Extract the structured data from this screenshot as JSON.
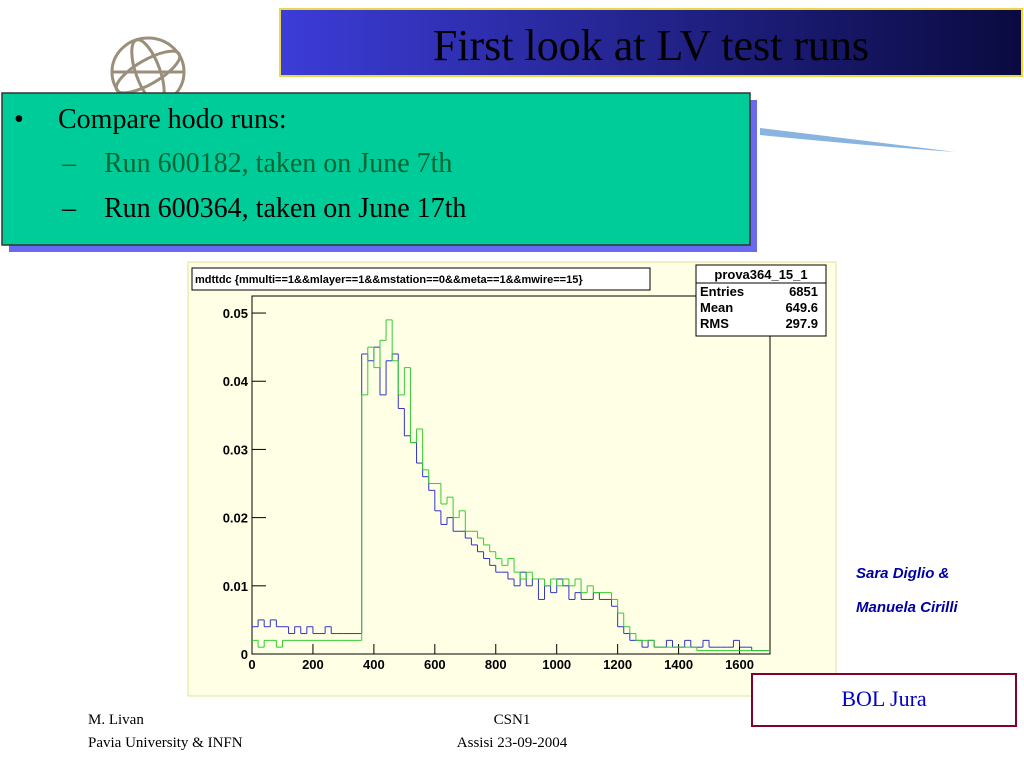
{
  "slide": {
    "title": "First look at LV test runs",
    "bullets": [
      {
        "marker": "•",
        "text": "Compare hodo runs:"
      },
      {
        "marker": "–",
        "text": "Run 600182, taken on June 7th"
      },
      {
        "marker": "–",
        "text": "Run 600364, taken on June 17th"
      }
    ],
    "authors": [
      "Sara Diglio &",
      "Manuela Cirilli"
    ],
    "box_label": "BOL Jura",
    "footer_left": [
      "M. Livan",
      "Pavia University & INFN"
    ],
    "footer_center": [
      "CSN1",
      "Assisi 23-09-2004"
    ]
  },
  "chart_data": {
    "type": "histogram",
    "title": "mdttdc {mmulti==1&&mlayer==1&&mstation==0&&meta==1&&mwire==15}",
    "stats": {
      "name": "prova364_15_1",
      "rows": [
        {
          "label": "Entries",
          "value": 6851
        },
        {
          "label": "Mean",
          "value": 649.6
        },
        {
          "label": "RMS",
          "value": 297.9
        }
      ]
    },
    "bins": [
      0,
      20,
      40,
      60,
      80,
      100,
      120,
      140,
      160,
      180,
      200,
      220,
      240,
      260,
      280,
      300,
      320,
      340,
      360,
      380,
      400,
      420,
      440,
      460,
      480,
      500,
      520,
      540,
      560,
      580,
      600,
      620,
      640,
      660,
      680,
      700,
      720,
      740,
      760,
      780,
      800,
      820,
      840,
      860,
      880,
      900,
      920,
      940,
      960,
      980,
      1000,
      1020,
      1040,
      1060,
      1080,
      1100,
      1120,
      1140,
      1160,
      1180,
      1200,
      1220,
      1240,
      1260,
      1280,
      1300,
      1320,
      1340,
      1360,
      1380,
      1400,
      1420,
      1440,
      1460,
      1480,
      1500,
      1520,
      1540,
      1560,
      1580,
      1600,
      1620,
      1640,
      1660,
      1680,
      1700
    ],
    "series": [
      {
        "color": "#3333cc",
        "values": [
          0.004,
          0.005,
          0.004,
          0.005,
          0.004,
          0.004,
          0.003,
          0.004,
          0.003,
          0.004,
          0.003,
          0.003,
          0.004,
          0.003,
          0.003,
          0.003,
          0.003,
          0.003,
          0.044,
          0.043,
          0.045,
          0.038,
          0.043,
          0.044,
          0.036,
          0.032,
          0.031,
          0.028,
          0.026,
          0.024,
          0.021,
          0.019,
          0.02,
          0.018,
          0.018,
          0.017,
          0.016,
          0.015,
          0.014,
          0.013,
          0.012,
          0.012,
          0.011,
          0.01,
          0.012,
          0.01,
          0.011,
          0.008,
          0.01,
          0.009,
          0.011,
          0.01,
          0.008,
          0.009,
          0.008,
          0.008,
          0.009,
          0.008,
          0.008,
          0.007,
          0.004,
          0.003,
          0.002,
          0.002,
          0.001,
          0.002,
          0.001,
          0.001,
          0.002,
          0.001,
          0.001,
          0.002,
          0.001,
          0.001,
          0.002,
          0.001,
          0.001,
          0.001,
          0.001,
          0.002,
          0.001,
          0.001,
          0.0005,
          0.0005,
          0.0005
        ]
      },
      {
        "color": "#33cc33",
        "values": [
          0.002,
          0.001,
          0.002,
          0.002,
          0.001,
          0.002,
          0.002,
          0.002,
          0.002,
          0.002,
          0.002,
          0.002,
          0.002,
          0.002,
          0.002,
          0.002,
          0.002,
          0.002,
          0.038,
          0.045,
          0.042,
          0.046,
          0.049,
          0.043,
          0.038,
          0.042,
          0.031,
          0.033,
          0.027,
          0.025,
          0.025,
          0.022,
          0.023,
          0.02,
          0.021,
          0.018,
          0.018,
          0.017,
          0.016,
          0.015,
          0.014,
          0.013,
          0.014,
          0.012,
          0.011,
          0.012,
          0.011,
          0.011,
          0.01,
          0.011,
          0.01,
          0.011,
          0.01,
          0.011,
          0.009,
          0.01,
          0.009,
          0.009,
          0.009,
          0.008,
          0.006,
          0.004,
          0.003,
          0.002,
          0.002,
          0.002,
          0.001,
          0.001,
          0.001,
          0.001,
          0.001,
          0.001,
          0.001,
          0.0005,
          0.0005,
          0.0005,
          0.0005,
          0.0005,
          0.0005,
          0.0005,
          0.0005,
          0.0005,
          0.0005,
          0.0005,
          0.0005
        ]
      }
    ],
    "xlim": [
      0,
      1700
    ],
    "ylim": [
      0,
      0.0525
    ],
    "xticks": [
      0,
      200,
      400,
      600,
      800,
      1000,
      1200,
      1400,
      1600
    ],
    "yticks": [
      0,
      0.01,
      0.02,
      0.03,
      0.04,
      0.05
    ]
  }
}
